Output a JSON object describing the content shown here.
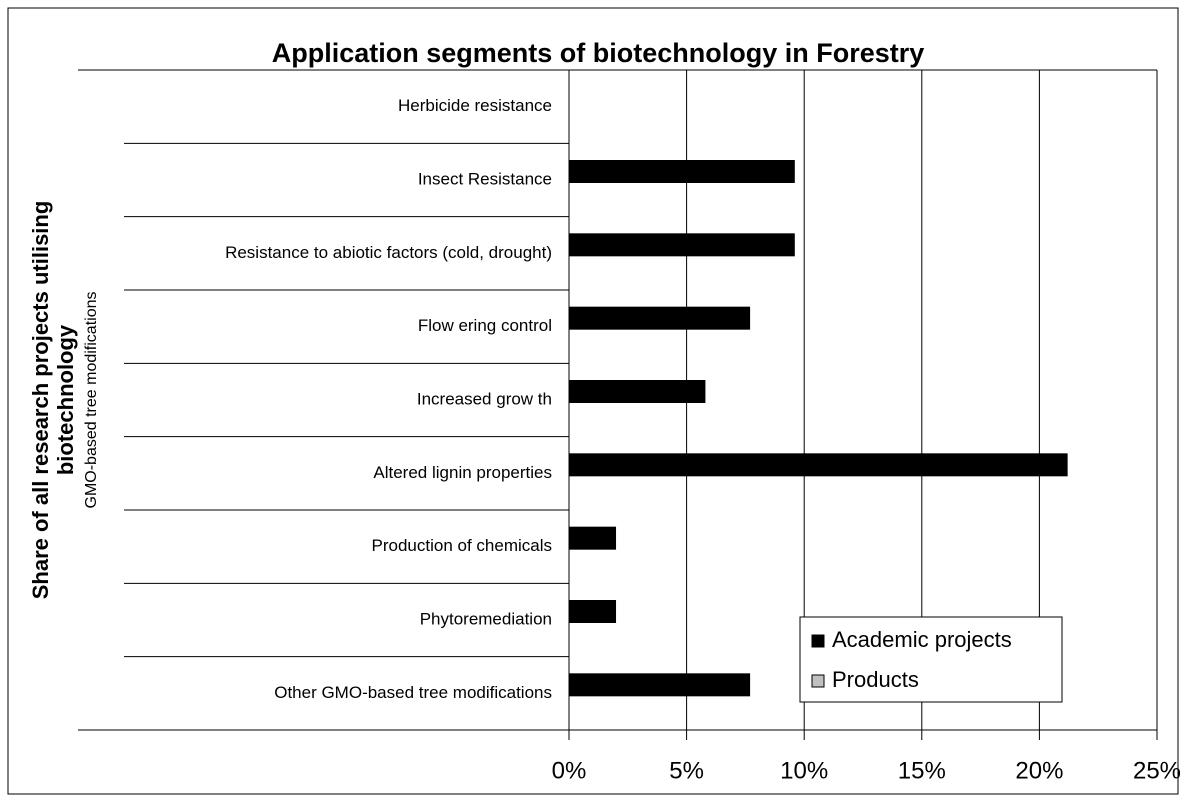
{
  "chart_data": {
    "type": "bar",
    "orientation": "horizontal",
    "title": "Application segments of biotechnology in Forestry",
    "ylabel": [
      "Share of all research projects utilising",
      "biotechnology"
    ],
    "ylabel_sub": "GMO-based tree modifications",
    "categories": [
      "Herbicide resistance",
      "Insect Resistance",
      "Resistance to abiotic factors (cold, drought)",
      "Flow ering control",
      "Increased grow th",
      "Altered lignin properties",
      "Production of chemicals",
      "Phytoremediation",
      "Other GMO-based tree modifications"
    ],
    "series": [
      {
        "name": "Academic projects",
        "color": "#000000",
        "values": [
          0,
          9.6,
          9.6,
          7.7,
          5.8,
          21.2,
          2.0,
          2.0,
          7.7
        ]
      },
      {
        "name": "Products",
        "color": "#c0c0c0",
        "values": [
          0,
          0,
          0,
          0,
          0,
          0,
          0,
          0,
          0
        ]
      }
    ],
    "xlim": [
      0,
      25
    ],
    "xticks": [
      {
        "value": 0,
        "label": "0%"
      },
      {
        "value": 5,
        "label": "5%"
      },
      {
        "value": 10,
        "label": "10%"
      },
      {
        "value": 15,
        "label": "15%"
      },
      {
        "value": 20,
        "label": "20%"
      },
      {
        "value": 25,
        "label": "25%"
      }
    ],
    "grid": true,
    "legend": "lower right"
  }
}
